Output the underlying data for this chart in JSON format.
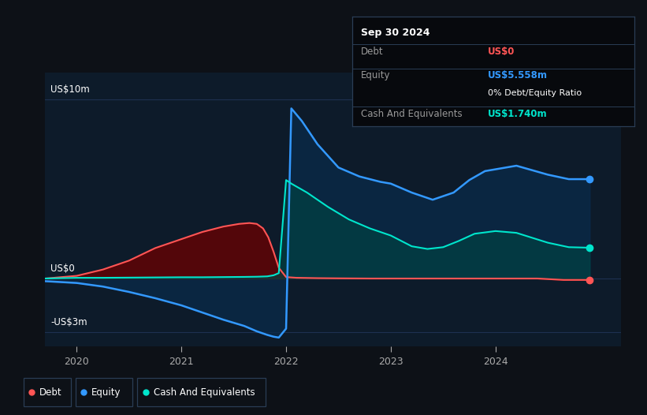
{
  "bg_color": "#0d1117",
  "plot_bg_color": "#0d1b2a",
  "grid_color": "#1e3050",
  "ylabel_top": "US$10m",
  "ylabel_mid": "US$0",
  "ylabel_bot": "-US$3m",
  "ylim": [
    -3.8,
    11.5
  ],
  "xlim": [
    2019.7,
    2025.2
  ],
  "xticks": [
    2020,
    2021,
    2022,
    2023,
    2024
  ],
  "yticks_vals": [
    10,
    0,
    -3
  ],
  "yticks_labels": [
    "US$10m",
    "US$0",
    "-US$3m"
  ],
  "debt_color": "#ff5555",
  "equity_color": "#3399ff",
  "cash_color": "#00e5cc",
  "debt_fill": "#6b0000",
  "equity_fill": "#0a2a4a",
  "cash_fill": "#004444",
  "info_box": {
    "date": "Sep 30 2024",
    "debt_label": "Debt",
    "debt_value": "US$0",
    "equity_label": "Equity",
    "equity_value": "US$5.558m",
    "ratio_value": "0% Debt/Equity Ratio",
    "cash_label": "Cash And Equivalents",
    "cash_value": "US$1.740m"
  },
  "t_debt": [
    2019.7,
    2020.0,
    2020.25,
    2020.5,
    2020.75,
    2021.0,
    2021.2,
    2021.4,
    2021.55,
    2021.65,
    2021.72,
    2021.78,
    2021.83,
    2021.88,
    2021.93,
    2022.0,
    2022.1,
    2022.3,
    2022.5,
    2022.8,
    2023.0,
    2023.5,
    2024.0,
    2024.4,
    2024.65,
    2024.9
  ],
  "v_debt": [
    0.0,
    0.15,
    0.5,
    1.0,
    1.7,
    2.2,
    2.6,
    2.9,
    3.05,
    3.1,
    3.05,
    2.8,
    2.3,
    1.5,
    0.6,
    0.08,
    0.04,
    0.02,
    0.01,
    0.0,
    0.0,
    0.0,
    0.0,
    0.0,
    -0.08,
    -0.08
  ],
  "t_equity": [
    2019.7,
    2020.0,
    2020.25,
    2020.5,
    2020.75,
    2021.0,
    2021.2,
    2021.4,
    2021.6,
    2021.72,
    2021.82,
    2021.88,
    2021.93,
    2022.0,
    2022.05,
    2022.15,
    2022.3,
    2022.5,
    2022.7,
    2022.9,
    2023.0,
    2023.2,
    2023.4,
    2023.6,
    2023.75,
    2023.9,
    2024.0,
    2024.2,
    2024.5,
    2024.7,
    2024.9
  ],
  "v_equity": [
    -0.15,
    -0.25,
    -0.45,
    -0.75,
    -1.1,
    -1.5,
    -1.9,
    -2.3,
    -2.65,
    -2.95,
    -3.15,
    -3.25,
    -3.3,
    -2.8,
    9.5,
    8.8,
    7.5,
    6.2,
    5.7,
    5.4,
    5.3,
    4.8,
    4.4,
    4.8,
    5.5,
    6.0,
    6.1,
    6.3,
    5.8,
    5.55,
    5.55
  ],
  "t_cash": [
    2019.7,
    2020.0,
    2020.25,
    2020.5,
    2020.75,
    2021.0,
    2021.2,
    2021.4,
    2021.6,
    2021.72,
    2021.82,
    2021.88,
    2021.93,
    2022.0,
    2022.05,
    2022.2,
    2022.4,
    2022.6,
    2022.8,
    2023.0,
    2023.2,
    2023.35,
    2023.5,
    2023.65,
    2023.8,
    2024.0,
    2024.2,
    2024.5,
    2024.7,
    2024.9
  ],
  "v_cash": [
    0.0,
    0.04,
    0.04,
    0.05,
    0.06,
    0.07,
    0.07,
    0.08,
    0.09,
    0.1,
    0.12,
    0.18,
    0.3,
    5.5,
    5.3,
    4.8,
    4.0,
    3.3,
    2.8,
    2.4,
    1.8,
    1.65,
    1.75,
    2.1,
    2.5,
    2.65,
    2.55,
    2.0,
    1.75,
    1.72
  ]
}
